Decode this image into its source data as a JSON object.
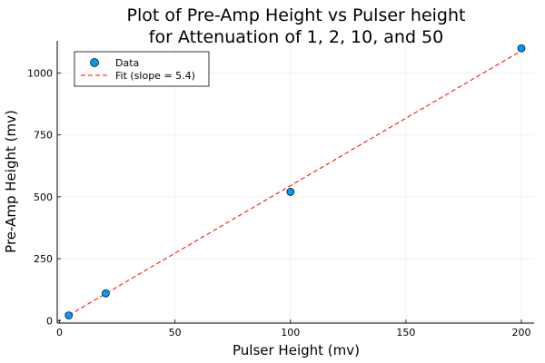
{
  "chart_data": {
    "type": "scatter",
    "title_line1": "Plot of Pre-Amp Height vs Pulser height",
    "title_line2": "for Attenuation of 1, 2, 10, and 50",
    "xlabel": "Pulser Height (mv)",
    "ylabel": "Pre-Amp Height (mv)",
    "xlim": [
      -1,
      205.5
    ],
    "ylim": [
      -10,
      1130
    ],
    "xticks": [
      0,
      50,
      100,
      150,
      200
    ],
    "yticks": [
      0,
      250,
      500,
      750,
      1000
    ],
    "grid": true,
    "legend_position": "top-left",
    "series": [
      {
        "name": "Data",
        "kind": "scatter",
        "color": "#009AFA",
        "x": [
          4,
          20,
          100,
          200
        ],
        "y": [
          21,
          110,
          520,
          1100
        ]
      },
      {
        "name": "Fit (slope = 5.4)",
        "kind": "line",
        "style": "dashed",
        "color": "#FF0000",
        "x": [
          4,
          200
        ],
        "y": [
          21.6,
          1090
        ]
      }
    ]
  }
}
